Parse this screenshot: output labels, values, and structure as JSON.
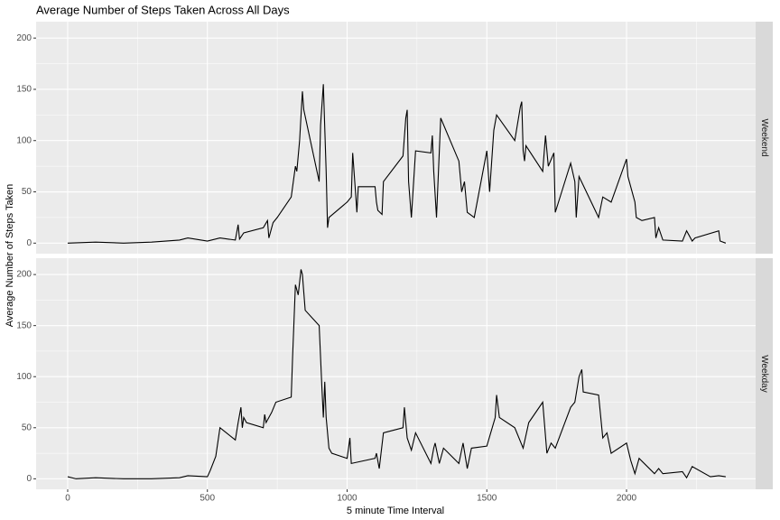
{
  "chart_data": {
    "type": "line",
    "title": "Average Number of Steps Taken Across All Days",
    "xlabel": "5 minute Time Interval",
    "ylabel": "Average Number of Steps Taken",
    "facet": true,
    "grid": true,
    "xlim": [
      -113,
      2462
    ],
    "ylim": [
      -10.3,
      216
    ],
    "xticks": [
      0,
      500,
      1000,
      1500,
      2000
    ],
    "yticks": [
      0,
      50,
      100,
      150,
      200
    ],
    "minor_xticks": [
      250,
      750,
      1250,
      1750,
      2250
    ],
    "minor_yticks": [
      25,
      75,
      125,
      175
    ],
    "series": [
      {
        "name": "Weekend",
        "color": "#000000",
        "x": [
          0,
          100,
          200,
          300,
          400,
          430,
          500,
          545,
          600,
          610,
          615,
          630,
          700,
          715,
          720,
          735,
          750,
          800,
          815,
          820,
          830,
          840,
          845,
          900,
          905,
          915,
          925,
          930,
          935,
          1000,
          1015,
          1020,
          1030,
          1035,
          1040,
          1100,
          1105,
          1110,
          1125,
          1130,
          1200,
          1210,
          1215,
          1220,
          1230,
          1245,
          1300,
          1305,
          1310,
          1320,
          1335,
          1400,
          1410,
          1420,
          1430,
          1455,
          1500,
          1510,
          1525,
          1535,
          1600,
          1620,
          1625,
          1630,
          1635,
          1640,
          1700,
          1710,
          1720,
          1740,
          1745,
          1800,
          1815,
          1820,
          1830,
          1900,
          1915,
          1945,
          2000,
          2005,
          2030,
          2035,
          2055,
          2100,
          2105,
          2115,
          2130,
          2200,
          2215,
          2235,
          2245,
          2330,
          2335,
          2355
        ],
        "values": [
          0,
          1,
          0,
          1,
          3,
          5,
          2,
          5,
          3,
          18,
          4,
          10,
          15,
          22,
          5,
          20,
          25,
          45,
          75,
          70,
          100,
          148,
          130,
          60,
          115,
          155,
          70,
          15,
          25,
          40,
          45,
          88,
          50,
          30,
          55,
          55,
          40,
          32,
          28,
          60,
          85,
          122,
          130,
          60,
          25,
          90,
          88,
          105,
          70,
          25,
          122,
          80,
          50,
          60,
          30,
          25,
          90,
          50,
          110,
          125,
          100,
          133,
          138,
          90,
          80,
          95,
          70,
          105,
          75,
          88,
          30,
          78,
          60,
          25,
          65,
          25,
          45,
          40,
          82,
          65,
          40,
          25,
          22,
          25,
          5,
          15,
          3,
          2,
          12,
          2,
          5,
          12,
          2,
          0
        ]
      },
      {
        "name": "Weekday",
        "color": "#000000",
        "x": [
          0,
          30,
          100,
          200,
          300,
          400,
          430,
          500,
          510,
          530,
          545,
          600,
          610,
          620,
          625,
          630,
          640,
          700,
          705,
          710,
          730,
          745,
          800,
          805,
          815,
          825,
          835,
          840,
          850,
          900,
          910,
          915,
          920,
          925,
          935,
          945,
          1000,
          1010,
          1015,
          1100,
          1105,
          1115,
          1130,
          1200,
          1205,
          1215,
          1230,
          1245,
          1300,
          1310,
          1315,
          1330,
          1345,
          1400,
          1415,
          1430,
          1445,
          1500,
          1530,
          1535,
          1545,
          1600,
          1630,
          1650,
          1700,
          1715,
          1730,
          1745,
          1800,
          1815,
          1830,
          1840,
          1845,
          1900,
          1915,
          1930,
          1945,
          2000,
          2015,
          2030,
          2045,
          2100,
          2115,
          2130,
          2200,
          2215,
          2235,
          2300,
          2330,
          2355
        ],
        "values": [
          2,
          0,
          1,
          0,
          0,
          1,
          3,
          2,
          8,
          22,
          50,
          38,
          55,
          70,
          50,
          60,
          55,
          50,
          63,
          55,
          65,
          75,
          80,
          120,
          190,
          180,
          205,
          200,
          165,
          150,
          88,
          60,
          95,
          60,
          30,
          25,
          20,
          40,
          15,
          20,
          25,
          10,
          45,
          50,
          70,
          40,
          28,
          45,
          15,
          30,
          35,
          15,
          30,
          15,
          35,
          10,
          30,
          32,
          60,
          82,
          60,
          50,
          30,
          55,
          75,
          25,
          35,
          30,
          70,
          75,
          100,
          107,
          85,
          82,
          40,
          45,
          25,
          35,
          18,
          5,
          20,
          5,
          10,
          5,
          7,
          1,
          12,
          2,
          3,
          2
        ]
      }
    ]
  }
}
